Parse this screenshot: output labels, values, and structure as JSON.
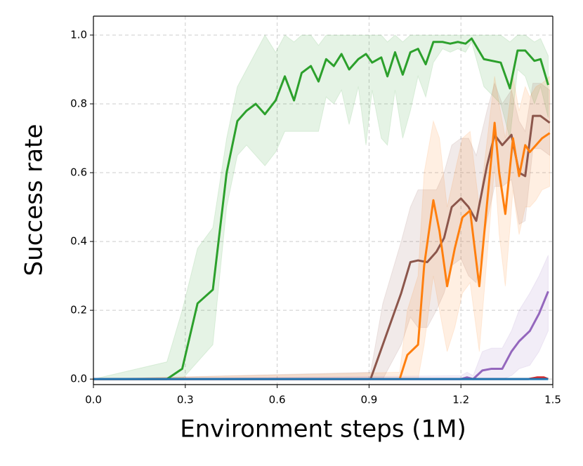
{
  "chart_data": {
    "type": "line",
    "xlabel": "Environment steps (1M)",
    "ylabel": "Success rate",
    "xlim": [
      0,
      1.5
    ],
    "ylim": [
      -0.016,
      1.055
    ],
    "xticks": [
      {
        "value": 0,
        "label": "0.0"
      },
      0.3,
      0.6,
      0.9,
      1.2,
      1.5
    ],
    "yticks": [
      {
        "value": 0,
        "label": "0.0"
      },
      0.2,
      0.4,
      0.6,
      0.8,
      {
        "value": 1,
        "label": "1.0"
      }
    ],
    "grid": true,
    "series": [
      {
        "color": "#2ca02c",
        "x": [
          0,
          0.24,
          0.29,
          0.34,
          0.39,
          0.435,
          0.47,
          0.5,
          0.53,
          0.56,
          0.595,
          0.625,
          0.655,
          0.68,
          0.71,
          0.735,
          0.76,
          0.785,
          0.81,
          0.835,
          0.865,
          0.89,
          0.91,
          0.94,
          0.96,
          0.985,
          1.01,
          1.035,
          1.06,
          1.085,
          1.11,
          1.14,
          1.165,
          1.19,
          1.215,
          1.235,
          1.275,
          1.33,
          1.36,
          1.385,
          1.41,
          1.44,
          1.46,
          1.485
        ],
        "values": [
          0,
          0,
          0.03,
          0.22,
          0.26,
          0.6,
          0.75,
          0.78,
          0.8,
          0.77,
          0.81,
          0.88,
          0.81,
          0.89,
          0.91,
          0.865,
          0.93,
          0.91,
          0.945,
          0.9,
          0.93,
          0.945,
          0.92,
          0.935,
          0.88,
          0.95,
          0.885,
          0.95,
          0.96,
          0.915,
          0.98,
          0.98,
          0.975,
          0.98,
          0.975,
          0.99,
          0.93,
          0.92,
          0.845,
          0.955,
          0.955,
          0.925,
          0.93,
          0.855
        ],
        "upper": [
          0,
          0.05,
          0.2,
          0.38,
          0.44,
          0.7,
          0.85,
          0.9,
          0.95,
          1.0,
          0.95,
          1.0,
          0.98,
          1.0,
          1.0,
          0.97,
          1.0,
          1.0,
          1.0,
          1.0,
          1.0,
          1.0,
          1.0,
          1.0,
          0.98,
          1.0,
          0.98,
          1.0,
          1.0,
          1.0,
          1.0,
          1.0,
          1.0,
          1.0,
          1.0,
          1.0,
          1.0,
          1.0,
          0.98,
          1.0,
          1.0,
          0.98,
          0.99,
          0.94
        ],
        "lower": [
          0,
          0,
          0,
          0.05,
          0.1,
          0.5,
          0.65,
          0.68,
          0.65,
          0.62,
          0.66,
          0.72,
          0.72,
          0.72,
          0.72,
          0.72,
          0.82,
          0.8,
          0.84,
          0.74,
          0.85,
          0.68,
          0.84,
          0.7,
          0.68,
          0.84,
          0.7,
          0.78,
          0.88,
          0.82,
          0.92,
          0.96,
          0.95,
          0.96,
          0.95,
          0.98,
          0.85,
          0.8,
          0.7,
          0.9,
          0.88,
          0.8,
          0.85,
          0.76
        ]
      },
      {
        "color": "#8c564b",
        "x": [
          0,
          0.905,
          0.945,
          1.005,
          1.035,
          1.06,
          1.09,
          1.12,
          1.145,
          1.17,
          1.2,
          1.225,
          1.25,
          1.285,
          1.31,
          1.335,
          1.365,
          1.39,
          1.41,
          1.435,
          1.46,
          1.49
        ],
        "values": [
          0,
          0,
          0.1,
          0.25,
          0.34,
          0.345,
          0.34,
          0.37,
          0.41,
          0.5,
          0.525,
          0.5,
          0.46,
          0.62,
          0.71,
          0.68,
          0.71,
          0.6,
          0.59,
          0.765,
          0.765,
          0.745
        ],
        "upper": [
          0,
          0.02,
          0.22,
          0.4,
          0.5,
          0.55,
          0.55,
          0.55,
          0.6,
          0.68,
          0.7,
          0.7,
          0.65,
          0.78,
          0.86,
          0.8,
          0.84,
          0.75,
          0.72,
          0.86,
          0.86,
          0.84
        ],
        "lower": [
          0,
          0,
          0,
          0.1,
          0.18,
          0.15,
          0.15,
          0.2,
          0.25,
          0.33,
          0.35,
          0.3,
          0.28,
          0.46,
          0.56,
          0.56,
          0.58,
          0.45,
          0.46,
          0.67,
          0.67,
          0.65
        ]
      },
      {
        "color": "#ff7f0e",
        "x": [
          0,
          1.0,
          1.025,
          1.06,
          1.08,
          1.11,
          1.13,
          1.155,
          1.18,
          1.205,
          1.23,
          1.26,
          1.31,
          1.325,
          1.345,
          1.37,
          1.39,
          1.41,
          1.425,
          1.445,
          1.465,
          1.49
        ],
        "values": [
          0,
          0,
          0.07,
          0.1,
          0.33,
          0.52,
          0.43,
          0.27,
          0.38,
          0.47,
          0.49,
          0.27,
          0.745,
          0.6,
          0.48,
          0.7,
          0.59,
          0.68,
          0.66,
          0.68,
          0.7,
          0.715
        ],
        "upper": [
          0,
          0.02,
          0.2,
          0.3,
          0.6,
          0.75,
          0.7,
          0.5,
          0.6,
          0.7,
          0.72,
          0.5,
          0.88,
          0.8,
          0.7,
          0.88,
          0.78,
          0.85,
          0.82,
          0.85,
          0.86,
          0.88
        ],
        "lower": [
          0,
          0,
          0,
          0,
          0.1,
          0.3,
          0.2,
          0.08,
          0.15,
          0.25,
          0.28,
          0.08,
          0.62,
          0.42,
          0.27,
          0.55,
          0.42,
          0.5,
          0.5,
          0.52,
          0.55,
          0.56
        ]
      },
      {
        "color": "#9467bd",
        "x": [
          0,
          1.2,
          1.22,
          1.24,
          1.27,
          1.3,
          1.335,
          1.365,
          1.39,
          1.425,
          1.455,
          1.485
        ],
        "values": [
          0,
          0,
          0.005,
          0,
          0.025,
          0.03,
          0.03,
          0.08,
          0.11,
          0.14,
          0.19,
          0.255
        ],
        "upper": [
          0,
          0.01,
          0.02,
          0.01,
          0.08,
          0.09,
          0.09,
          0.14,
          0.2,
          0.25,
          0.3,
          0.36
        ],
        "lower": [
          0,
          0,
          0,
          0,
          0,
          0,
          0,
          0.01,
          0.03,
          0.04,
          0.08,
          0.14
        ]
      },
      {
        "color": "#d62728",
        "x": [
          0,
          1.42,
          1.45,
          1.47,
          1.485
        ],
        "values": [
          0,
          0,
          0.005,
          0.005,
          0
        ]
      },
      {
        "color": "#1f77b4",
        "x": [
          0,
          1.485
        ],
        "values": [
          0,
          0
        ]
      }
    ]
  }
}
